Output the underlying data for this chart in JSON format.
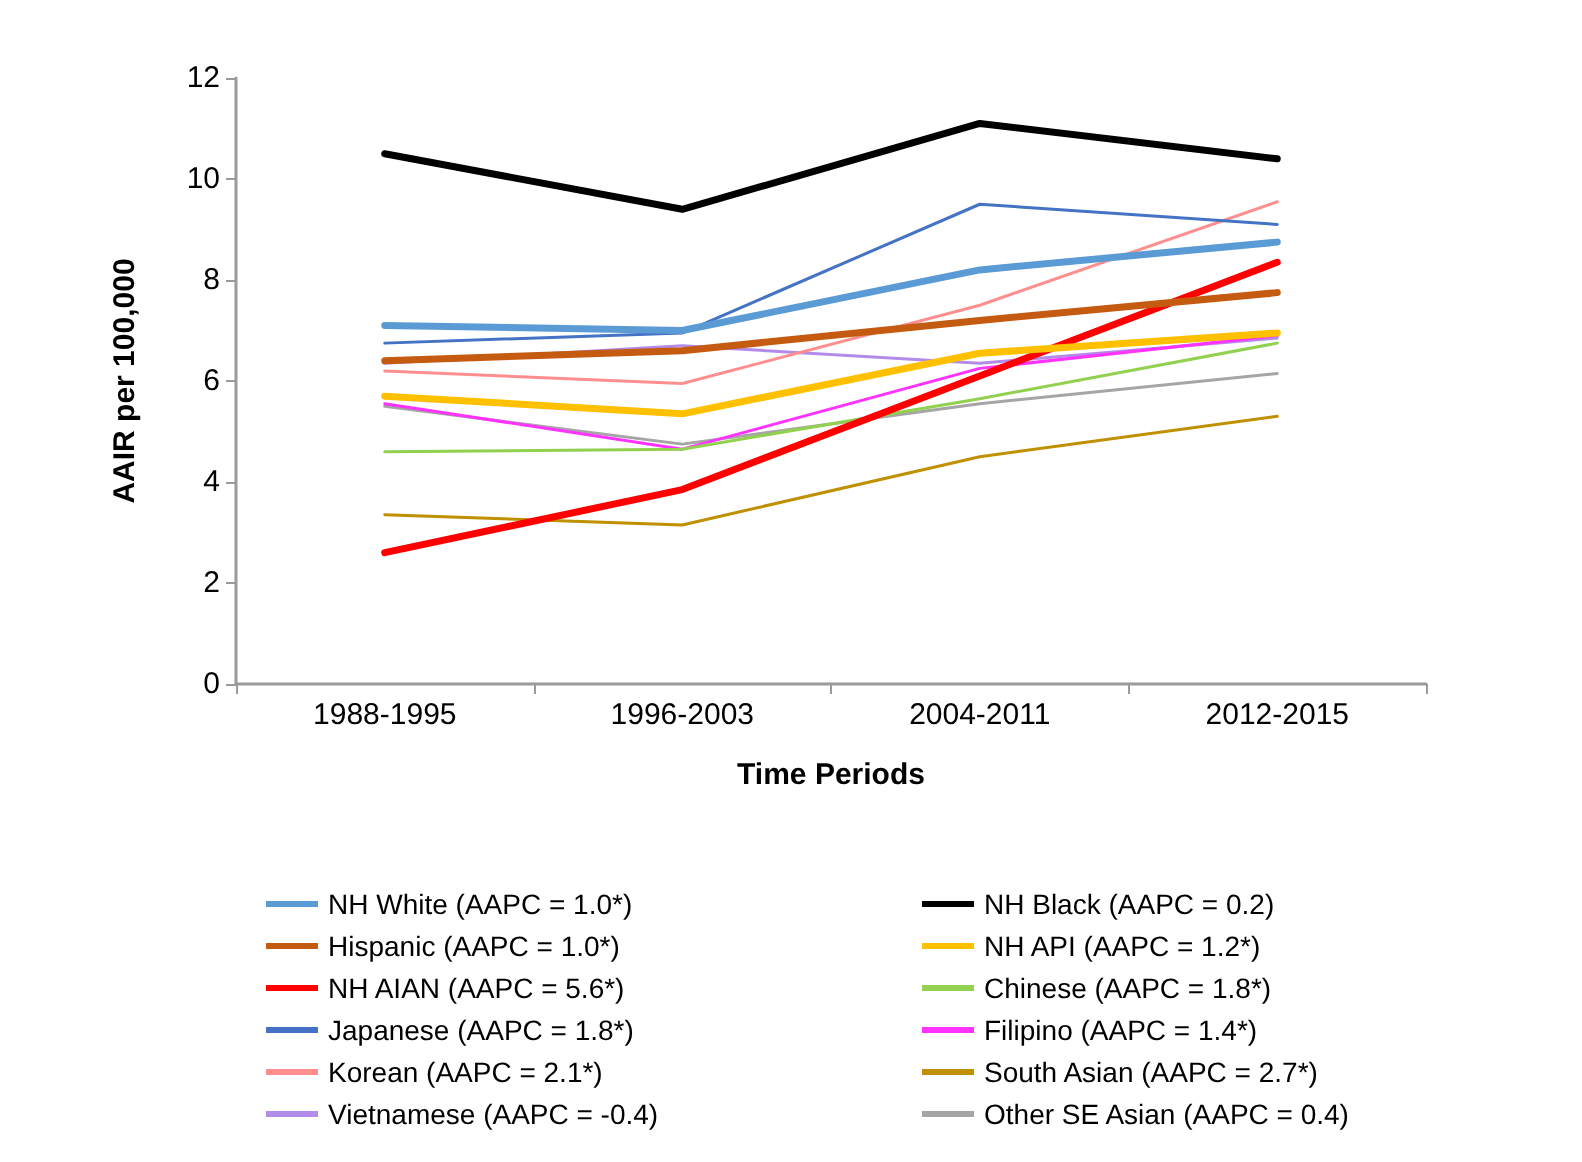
{
  "chart_data": {
    "type": "line",
    "xlabel": "Time Periods",
    "ylabel": "AAIR per 100,000",
    "categories": [
      "1988-1995",
      "1996-2003",
      "2004-2011",
      "2012-2015"
    ],
    "ylim": [
      0,
      12
    ],
    "yticks": [
      0,
      2,
      4,
      6,
      8,
      10,
      12
    ],
    "legend": "bottom",
    "marker": "none",
    "line_style": "solid",
    "series": [
      {
        "name": "NH White (AAPC = 1.0*)",
        "color": "#5b9bd5",
        "values": [
          7.1,
          7.0,
          8.2,
          8.75
        ]
      },
      {
        "name": "NH Black (AAPC = 0.2)",
        "color": "#000000",
        "values": [
          10.5,
          9.4,
          11.1,
          10.4
        ]
      },
      {
        "name": "Hispanic (AAPC = 1.0*)",
        "color": "#c55a11",
        "values": [
          6.4,
          6.6,
          7.2,
          7.75
        ]
      },
      {
        "name": "NH API (AAPC = 1.2*)",
        "color": "#ffc000",
        "values": [
          5.7,
          5.35,
          6.55,
          6.95
        ]
      },
      {
        "name": "NH AIAN (AAPC = 5.6*)",
        "color": "#ff0000",
        "values": [
          2.6,
          3.85,
          6.1,
          8.35
        ]
      },
      {
        "name": "Chinese (AAPC = 1.8*)",
        "color": "#92d050",
        "values": [
          4.6,
          4.65,
          5.65,
          6.75
        ]
      },
      {
        "name": "Japanese (AAPC = 1.8*)",
        "color": "#4472c4",
        "values": [
          6.75,
          6.95,
          9.5,
          9.1
        ]
      },
      {
        "name": "Filipino (AAPC = 1.4*)",
        "color": "#ff33ff",
        "values": [
          5.55,
          4.65,
          6.25,
          6.9
        ]
      },
      {
        "name": "Korean (AAPC = 2.1*)",
        "color": "#ff8f8f",
        "values": [
          6.2,
          5.95,
          7.5,
          9.55
        ]
      },
      {
        "name": "South Asian (AAPC = 2.7*)",
        "color": "#bf9000",
        "values": [
          3.35,
          3.15,
          4.5,
          5.3
        ]
      },
      {
        "name": "Vietnamese (AAPC = -0.4)",
        "color": "#b38be8",
        "values": [
          6.35,
          6.7,
          6.35,
          6.85
        ]
      },
      {
        "name": "Other SE Asian (AAPC = 0.4)",
        "color": "#a5a5a5",
        "values": [
          5.5,
          4.75,
          5.55,
          6.15
        ]
      }
    ]
  }
}
